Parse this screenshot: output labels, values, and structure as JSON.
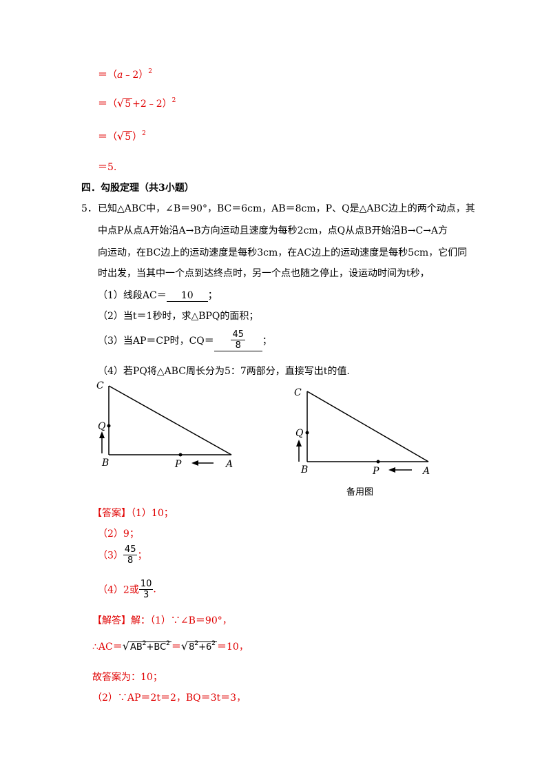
{
  "prev_solution": {
    "line1_prefix": "＝（",
    "line1_var": "a",
    "line1_rest": "﹣2）",
    "line1_exp": "2",
    "line2_prefix": "＝（",
    "line2_rad": "5",
    "line2_rest": "+2﹣2）",
    "line2_exp": "2",
    "line3_prefix": "＝（",
    "line3_rad": "5",
    "line3_rest": "）",
    "line3_exp": "2",
    "line4": "＝5."
  },
  "section_title": "四．勾股定理（共3小题）",
  "problem": {
    "number": "5．",
    "line1": "已知△ABC中，∠B＝90°，BC＝6cm，AB＝8cm，P、Q是△ABC边上的两个动点，其",
    "line2": "中点P从点A开始沿A→B方向运动且速度为每秒2cm，点Q从点B开始沿B→C→A方",
    "line3": "向运动，在BC边上的运动速度是每秒3cm，在AC边上的运动速度是每秒5cm，它们同",
    "line4": "时出发，当其中一个点到达终点时，另一个点也随之停止，设运动时间为t秒，",
    "q1_prefix": "（1）线段AC＝",
    "q1_answer": "10",
    "q1_suffix": "；",
    "q2": "（2）当t＝1秒时，求△BPQ的面积；",
    "q3_prefix": "（3）当AP＝CP时，CQ＝",
    "q3_num": "45",
    "q3_den": "8",
    "q3_suffix": "；",
    "q4": "（4）若PQ将△ABC周长分为5：7两部分，直接写出t的值."
  },
  "figure_left": {
    "label_c": "C",
    "label_q": "Q",
    "label_b": "B",
    "label_p": "P",
    "label_a": "A"
  },
  "figure_right": {
    "label_c": "C",
    "label_q": "Q",
    "label_b": "B",
    "label_p": "P",
    "label_a": "A",
    "caption": "备用图"
  },
  "answer": {
    "tag": "【答案】",
    "a1": "（1）10；",
    "a2": "（2）9；",
    "a3_prefix": "（3）",
    "a3_num": "45",
    "a3_den": "8",
    "a3_suffix": "；",
    "a4_prefix": "（4）2或",
    "a4_num": "10",
    "a4_den": "3",
    "a4_suffix": "."
  },
  "solution": {
    "tag": "【解答】",
    "line1": "解：（1）∵∠B＝90°，",
    "line2_prefix": "∴AC＝",
    "line2_rad1": "AB",
    "line2_rad1b": "+BC",
    "line2_exp": "2",
    "line2_eq": "＝",
    "line2_rad2": "8",
    "line2_rad2b": "+6",
    "line2_result": "＝10，",
    "line3": "故答案为：10；",
    "line4": "（2）∵AP＝2t＝2，BQ＝3t＝3，"
  }
}
